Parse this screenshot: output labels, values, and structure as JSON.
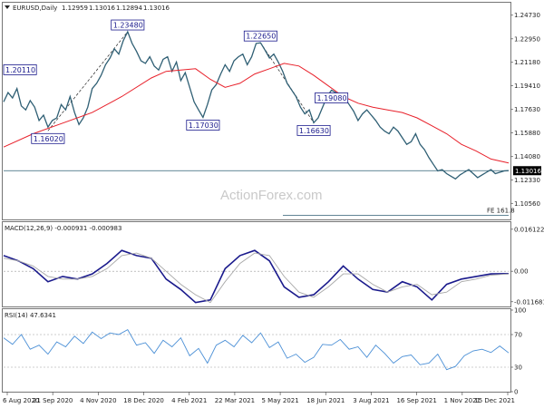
{
  "header": {
    "symbol": "EURUSD,Daily",
    "open": "1.12959",
    "high": "1.13016",
    "low": "1.12894",
    "close": "1.13016"
  },
  "watermark": "ActionForex.com",
  "colors": {
    "price": "#2f5f74",
    "ma": "#e8202a",
    "macd": "#1a1a8c",
    "signal": "#a8a8a8",
    "rsi": "#4a8fd6",
    "frame": "#555555",
    "label_border": "#1a1a8c",
    "hline": "#2f5f74"
  },
  "chart_data": [
    {
      "type": "line",
      "title": "EURUSD,Daily 1.12959 1.13016 1.12894 1.13016",
      "x_ticks": [
        "6 Aug 2020",
        "21 Sep 2020",
        "4 Nov 2020",
        "18 Dec 2020",
        "4 Feb 2021",
        "22 Mar 2021",
        "5 May 2021",
        "18 Jun 2021",
        "3 Aug 2021",
        "16 Sep 2021",
        "1 Nov 2021",
        "15 Dec 2021"
      ],
      "y_ticks": [
        "1.24730",
        "1.22950",
        "1.21180",
        "1.19410",
        "1.17630",
        "1.15880",
        "1.14080",
        "1.12330",
        "1.10560"
      ],
      "ylim": [
        1.0935,
        1.256
      ],
      "current_price": "1.13016",
      "fib_label": "FE 161.8",
      "fib_level": 1.0965,
      "horizontal_line": 1.1302,
      "series": [
        {
          "key": "price",
          "x": [
            0,
            3,
            6,
            9,
            12,
            15,
            18,
            21,
            24,
            27,
            30,
            33,
            36,
            39,
            42,
            45,
            48,
            51,
            54,
            57,
            60,
            63,
            66,
            69,
            72,
            75,
            78,
            81,
            84,
            87,
            90,
            93,
            96,
            99,
            102,
            105,
            108,
            111,
            114,
            117,
            120,
            123,
            126,
            129,
            132,
            135,
            138,
            141,
            144,
            147,
            150,
            153,
            156,
            159,
            162,
            165,
            168,
            171,
            174,
            177,
            180,
            183,
            186,
            189,
            192,
            195,
            198,
            201,
            204,
            207,
            210,
            213,
            216,
            219,
            222,
            225,
            228,
            231,
            234,
            237,
            240,
            243,
            246,
            249,
            252,
            255,
            258,
            261,
            264,
            267,
            270,
            273,
            276,
            279,
            282,
            285,
            288,
            291,
            294,
            297,
            300,
            303,
            306,
            309,
            312,
            315,
            318,
            321,
            324,
            327,
            330,
            333,
            336,
            339,
            342
          ],
          "values": [
            1.182,
            1.189,
            1.185,
            1.192,
            1.179,
            1.176,
            1.183,
            1.178,
            1.168,
            1.172,
            1.163,
            1.168,
            1.17,
            1.18,
            1.176,
            1.186,
            1.174,
            1.165,
            1.17,
            1.178,
            1.192,
            1.196,
            1.202,
            1.21,
            1.215,
            1.222,
            1.218,
            1.228,
            1.2348,
            1.226,
            1.22,
            1.213,
            1.211,
            1.216,
            1.209,
            1.206,
            1.214,
            1.216,
            1.205,
            1.212,
            1.198,
            1.204,
            1.193,
            1.182,
            1.176,
            1.1703,
            1.18,
            1.191,
            1.195,
            1.203,
            1.21,
            1.205,
            1.213,
            1.216,
            1.218,
            1.21,
            1.216,
            1.226,
            1.2265,
            1.221,
            1.215,
            1.218,
            1.212,
            1.205,
            1.196,
            1.191,
            1.186,
            1.178,
            1.173,
            1.176,
            1.1663,
            1.17,
            1.178,
            1.186,
            1.1908,
            1.189,
            1.184,
            1.185,
            1.18,
            1.175,
            1.168,
            1.173,
            1.176,
            1.172,
            1.168,
            1.163,
            1.16,
            1.158,
            1.163,
            1.16,
            1.155,
            1.15,
            1.152,
            1.158,
            1.15,
            1.146,
            1.14,
            1.135,
            1.13,
            1.131,
            1.128,
            1.126,
            1.124,
            1.127,
            1.129,
            1.131,
            1.128,
            1.125,
            1.127,
            1.129,
            1.131,
            1.128,
            1.129,
            1.13,
            1.1302
          ]
        },
        {
          "key": "ma",
          "x": [
            0,
            20,
            40,
            60,
            80,
            100,
            110,
            120,
            130,
            140,
            150,
            160,
            170,
            180,
            190,
            200,
            210,
            220,
            230,
            240,
            250,
            260,
            270,
            280,
            290,
            300,
            310,
            320,
            330,
            342
          ],
          "values": [
            1.148,
            1.158,
            1.166,
            1.174,
            1.186,
            1.2,
            1.205,
            1.206,
            1.207,
            1.199,
            1.193,
            1.196,
            1.203,
            1.207,
            1.211,
            1.209,
            1.202,
            1.194,
            1.186,
            1.181,
            1.178,
            1.176,
            1.174,
            1.17,
            1.164,
            1.158,
            1.15,
            1.145,
            1.139,
            1.136
          ]
        }
      ],
      "annotations": [
        {
          "text": "1.23480",
          "x": 84,
          "y": 1.2348
        },
        {
          "text": "1.22650",
          "x": 174,
          "y": 1.2265
        },
        {
          "text": "1.19080",
          "x": 222,
          "y": 1.1908
        },
        {
          "text": "1.16630",
          "x": 210,
          "y": 1.1663
        },
        {
          "text": "1.17030",
          "x": 135,
          "y": 1.1703
        },
        {
          "text": "1.16020",
          "x": 30,
          "y": 1.1602
        },
        {
          "text": "1.20110",
          "x": 0,
          "y": 1.2011
        }
      ],
      "trendlines": [
        {
          "x": [
            30,
            84
          ],
          "y": [
            1.1602,
            1.2348
          ]
        },
        {
          "x": [
            174,
            210
          ],
          "y": [
            1.2265,
            1.1663
          ]
        }
      ]
    },
    {
      "type": "line",
      "title": "MACD(12,26,9) -0.000931 -0.000983",
      "y_ticks": [
        "0.016122",
        "0.00",
        "-0.011681"
      ],
      "ylim": [
        -0.0135,
        0.0185
      ],
      "series": [
        {
          "key": "macd",
          "x": [
            0,
            10,
            20,
            30,
            40,
            50,
            60,
            70,
            80,
            90,
            100,
            110,
            120,
            130,
            140,
            150,
            160,
            170,
            180,
            190,
            200,
            210,
            220,
            230,
            240,
            250,
            260,
            270,
            280,
            290,
            300,
            310,
            320,
            330,
            342
          ],
          "values": [
            0.006,
            0.004,
            0.001,
            -0.004,
            -0.002,
            -0.003,
            -0.001,
            0.003,
            0.008,
            0.006,
            0.005,
            -0.003,
            -0.007,
            -0.012,
            -0.011,
            0.001,
            0.006,
            0.008,
            0.004,
            -0.006,
            -0.01,
            -0.009,
            -0.004,
            0.002,
            -0.003,
            -0.007,
            -0.008,
            -0.004,
            -0.006,
            -0.011,
            -0.005,
            -0.003,
            -0.002,
            -0.001,
            -0.0009
          ]
        },
        {
          "key": "signal",
          "x": [
            0,
            10,
            20,
            30,
            40,
            50,
            60,
            70,
            80,
            90,
            100,
            110,
            120,
            130,
            140,
            150,
            160,
            170,
            180,
            190,
            200,
            210,
            220,
            230,
            240,
            250,
            260,
            270,
            280,
            290,
            300,
            310,
            320,
            330,
            342
          ],
          "values": [
            0.005,
            0.004,
            0.002,
            -0.002,
            -0.003,
            -0.003,
            -0.002,
            0.001,
            0.006,
            0.007,
            0.005,
            0.0,
            -0.005,
            -0.009,
            -0.012,
            -0.004,
            0.003,
            0.007,
            0.006,
            -0.002,
            -0.008,
            -0.01,
            -0.006,
            -0.001,
            -0.001,
            -0.005,
            -0.008,
            -0.006,
            -0.005,
            -0.009,
            -0.008,
            -0.004,
            -0.003,
            -0.0015,
            -0.001
          ]
        }
      ]
    },
    {
      "type": "line",
      "title": "RSI(14) 47.6341",
      "y_ticks": [
        "100",
        "70",
        "30",
        "0"
      ],
      "ylim": [
        0,
        100
      ],
      "series": [
        {
          "key": "rsi",
          "x": [
            0,
            6,
            12,
            18,
            24,
            30,
            36,
            42,
            48,
            54,
            60,
            66,
            72,
            78,
            84,
            90,
            96,
            102,
            108,
            114,
            120,
            126,
            132,
            138,
            144,
            150,
            156,
            162,
            168,
            174,
            180,
            186,
            192,
            198,
            204,
            210,
            216,
            222,
            228,
            234,
            240,
            246,
            252,
            258,
            264,
            270,
            276,
            282,
            288,
            294,
            300,
            306,
            312,
            318,
            324,
            330,
            336,
            342
          ],
          "values": [
            66,
            58,
            70,
            52,
            57,
            46,
            61,
            55,
            68,
            59,
            73,
            65,
            72,
            70,
            76,
            57,
            60,
            47,
            63,
            55,
            66,
            44,
            53,
            35,
            57,
            63,
            55,
            69,
            60,
            72,
            54,
            61,
            41,
            46,
            36,
            42,
            58,
            57,
            64,
            52,
            55,
            42,
            57,
            47,
            35,
            43,
            45,
            33,
            35,
            46,
            27,
            31,
            44,
            50,
            52,
            48,
            56,
            47.6
          ]
        }
      ]
    }
  ]
}
